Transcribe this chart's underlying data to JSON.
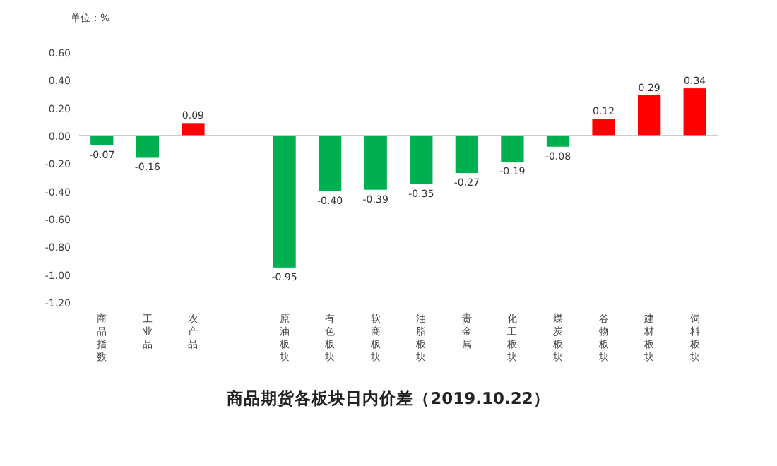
{
  "chart_data": {
    "type": "bar",
    "title": "商品期货各板块日内价差（2019.10.22）",
    "ylabel": "单位：%",
    "categories": [
      "商品指数",
      "工业品",
      "农产品",
      null,
      "原油板块",
      "有色板块",
      "软商板块",
      "油脂板块",
      "贵金属",
      "化工板块",
      "煤炭板块",
      "谷物板块",
      "建材板块",
      "饲料板块"
    ],
    "values": [
      -0.07,
      -0.16,
      0.09,
      null,
      -0.95,
      -0.4,
      -0.39,
      -0.35,
      -0.27,
      -0.19,
      -0.08,
      0.12,
      0.29,
      0.34
    ],
    "colors": [
      "#00b050",
      "#00b050",
      "#ff0000",
      null,
      "#00b050",
      "#00b050",
      "#00b050",
      "#00b050",
      "#00b050",
      "#00b050",
      "#00b050",
      "#ff0000",
      "#ff0000",
      "#ff0000"
    ],
    "ylim": [
      -1.2,
      0.6
    ],
    "yticks": [
      {
        "value": -1.2,
        "label": "-1.20"
      },
      {
        "value": -1.0,
        "label": "-1.00"
      },
      {
        "value": -0.8,
        "label": "-0.80"
      },
      {
        "value": -0.6,
        "label": "-0.60"
      },
      {
        "value": -0.4,
        "label": "-0.40"
      },
      {
        "value": -0.2,
        "label": "-0.20"
      },
      {
        "value": 0,
        "label": "0.00"
      },
      {
        "value": 0.2,
        "label": "0.20"
      },
      {
        "value": 0.4,
        "label": "0.40"
      },
      {
        "value": 0.6,
        "label": "0.60"
      }
    ],
    "value_labels": [
      "-0.07",
      "-0.16",
      "0.09",
      null,
      "-0.95",
      "-0.40",
      "-0.39",
      "-0.35",
      "-0.27",
      "-0.19",
      "-0.08",
      "0.12",
      "0.29",
      "0.34"
    ]
  }
}
